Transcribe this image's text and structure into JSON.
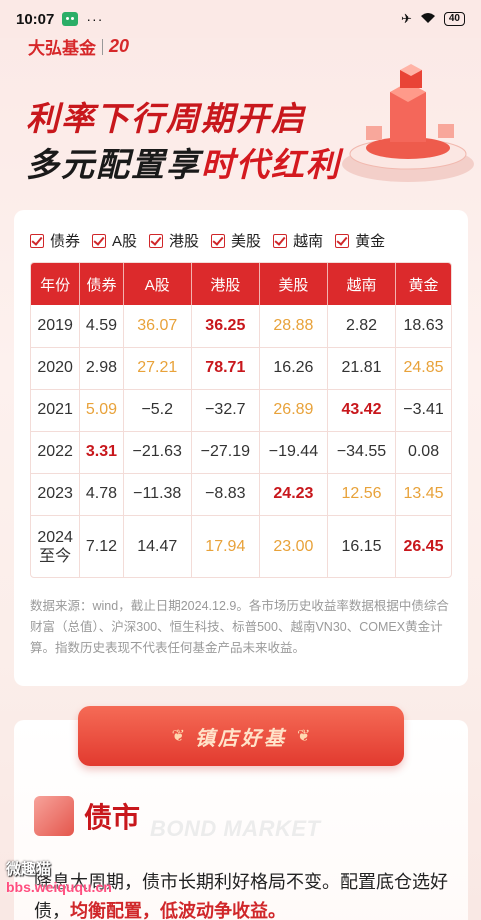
{
  "status_bar": {
    "time": "10:07",
    "dots": "···",
    "battery": "40"
  },
  "brand": {
    "name": "大弘基金",
    "badge": "20"
  },
  "hero": {
    "line1": "利率下行周期开启",
    "line2_a": "多元配置享",
    "line2_b": "时代红利"
  },
  "filters": [
    "债券",
    "A股",
    "港股",
    "美股",
    "越南",
    "黄金"
  ],
  "table": {
    "headers": [
      "年份",
      "债券",
      "A股",
      "港股",
      "美股",
      "越南",
      "黄金"
    ],
    "rows": [
      [
        "2019",
        "4.59",
        "36.07",
        "36.25",
        "28.88",
        "2.82",
        "18.63"
      ],
      [
        "2020",
        "2.98",
        "27.21",
        "78.71",
        "16.26",
        "21.81",
        "24.85"
      ],
      [
        "2021",
        "5.09",
        "−5.2",
        "−32.7",
        "26.89",
        "43.42",
        "−3.41"
      ],
      [
        "2022",
        "3.31",
        "−21.63",
        "−27.19",
        "−19.44",
        "−34.55",
        "0.08"
      ],
      [
        "2023",
        "4.78",
        "−11.38",
        "−8.83",
        "24.23",
        "12.56",
        "13.45"
      ],
      [
        "2024",
        "7.12",
        "14.47",
        "17.94",
        "23.00",
        "16.15",
        "26.45"
      ]
    ],
    "row6_year_line2": "至今"
  },
  "source_note": "数据来源：wind，截止日期2024.12.9。各市场历史收益率数据根据中债综合财富（总值）、沪深300、恒生科技、标普500、越南VN30、COMEX黄金计算。指数历史表现不代表任何基金产品未来收益。",
  "banner": {
    "label": "镇店好基"
  },
  "bond": {
    "title": "债市",
    "subtitle_en": "BOND MARKET"
  },
  "body": {
    "p1": "降息大周期，债市长期利好格局不变。配置底仓选好债，",
    "p1_em": "均衡配置，低波动争收益。"
  },
  "watermark": {
    "line1": "微趣猫",
    "line2": "bbs.weiququ.cn"
  }
}
